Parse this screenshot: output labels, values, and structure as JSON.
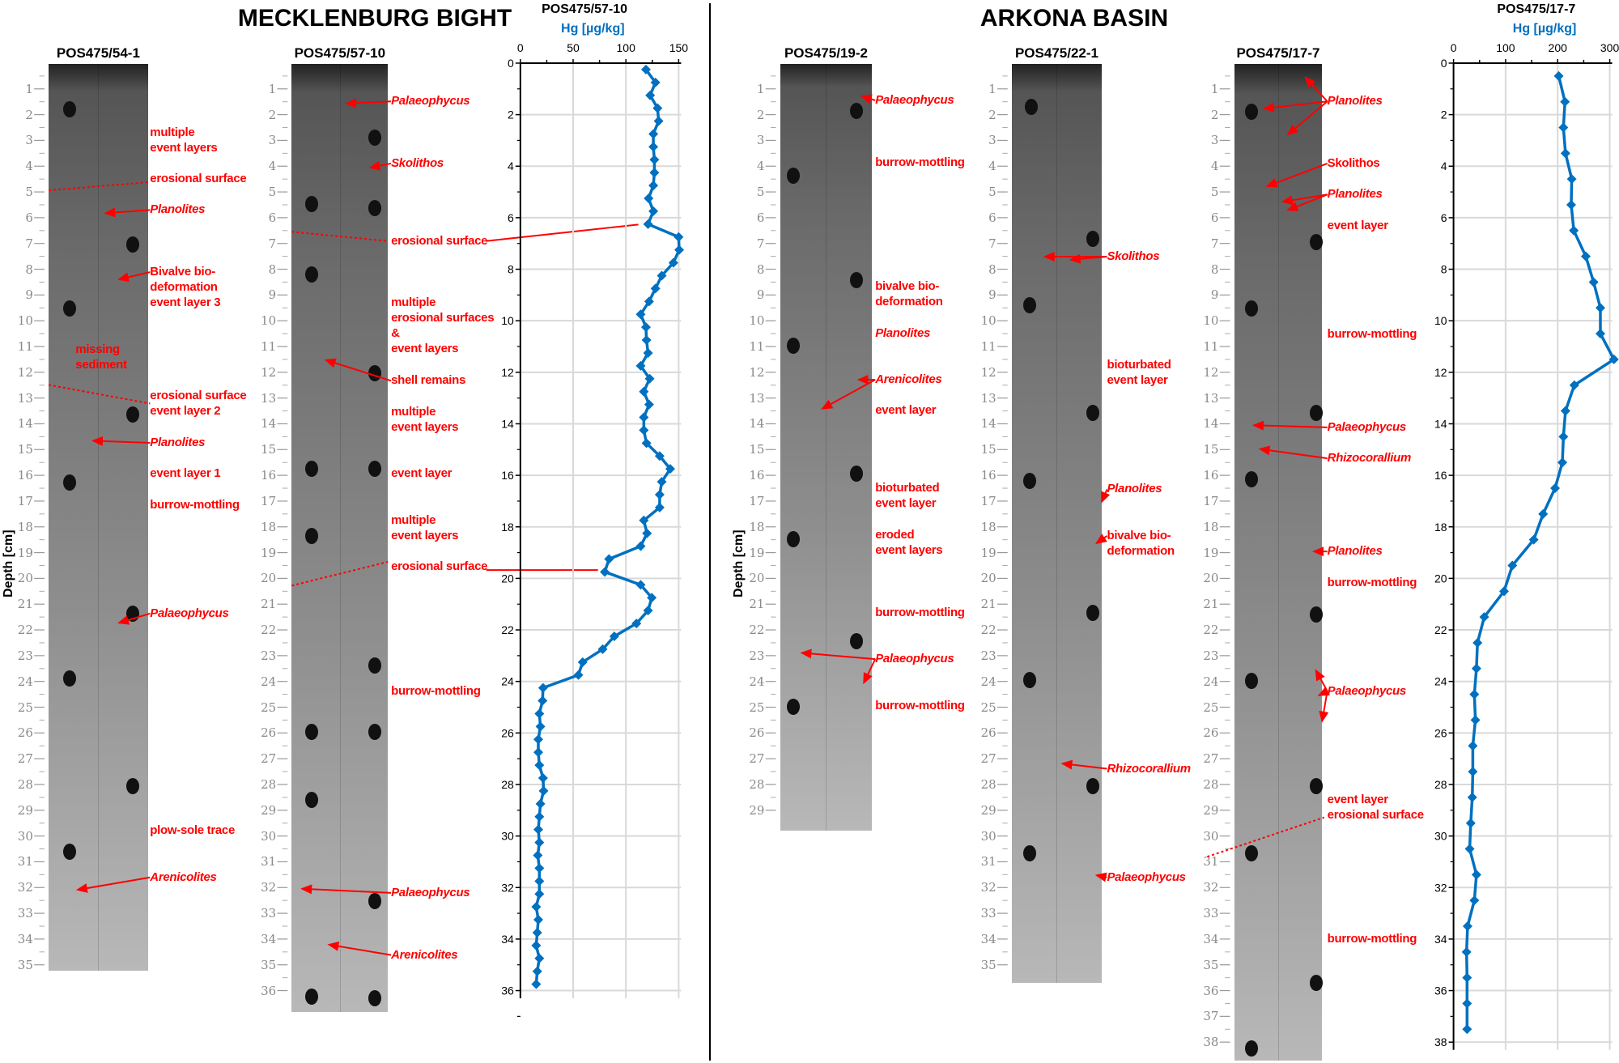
{
  "titles": {
    "left": "MECKLENBURG BIGHT",
    "right": "ARKONA BASIN"
  },
  "depth_axis_label": "Depth [cm]",
  "cores": [
    {
      "id": "POS475/54-1",
      "ruler_max": 35,
      "annotations": [
        {
          "text": "multiple\nevent layers",
          "italic": false
        },
        {
          "text": "erosional surface",
          "italic": false
        },
        {
          "text": "Planolites",
          "italic": true
        },
        {
          "text": "Bivalve bio-\ndeformation\nevent layer 3",
          "italic": false
        },
        {
          "text": "missing\nsediment",
          "italic": false
        },
        {
          "text": "erosional surface\nevent layer 2",
          "italic": false
        },
        {
          "text": "Planolites",
          "italic": true
        },
        {
          "text": "event layer 1",
          "italic": false
        },
        {
          "text": "burrow-mottling",
          "italic": false
        },
        {
          "text": "Palaeophycus",
          "italic": true
        },
        {
          "text": "plow-sole trace",
          "italic": false
        },
        {
          "text": "Arenicolites",
          "italic": true
        }
      ]
    },
    {
      "id": "POS475/57-10",
      "ruler_max": 36,
      "annotations": [
        {
          "text": "Palaeophycus",
          "italic": true
        },
        {
          "text": "Skolithos",
          "italic": true
        },
        {
          "text": "erosional surface",
          "italic": false
        },
        {
          "text": "multiple\nerosional surfaces\n&\nevent layers",
          "italic": false
        },
        {
          "text": "shell remains",
          "italic": false
        },
        {
          "text": "multiple\nevent layers",
          "italic": false
        },
        {
          "text": "event layer",
          "italic": false
        },
        {
          "text": "multiple\nevent layers",
          "italic": false
        },
        {
          "text": "erosional surface",
          "italic": false
        },
        {
          "text": "burrow-mottling",
          "italic": false
        },
        {
          "text": "Palaeophycus",
          "italic": true
        },
        {
          "text": "Arenicolites",
          "italic": true
        }
      ]
    },
    {
      "id": "POS475/19-2",
      "ruler_max": 29,
      "annotations": [
        {
          "text": "Palaeophycus",
          "italic": true
        },
        {
          "text": "burrow-mottling",
          "italic": false
        },
        {
          "text": "bivalve bio-\ndeformation",
          "italic": false
        },
        {
          "text": "Planolites",
          "italic": true
        },
        {
          "text": "Arenicolites",
          "italic": true
        },
        {
          "text": "event layer",
          "italic": false
        },
        {
          "text": "bioturbated\nevent layer",
          "italic": false
        },
        {
          "text": "eroded\nevent layers",
          "italic": false
        },
        {
          "text": "burrow-mottling",
          "italic": false
        },
        {
          "text": "Palaeophycus",
          "italic": true
        },
        {
          "text": "burrow-mottling",
          "italic": false
        }
      ]
    },
    {
      "id": "POS475/22-1",
      "ruler_max": 35,
      "annotations": [
        {
          "text": "Skolithos",
          "italic": true
        },
        {
          "text": "bioturbated\nevent layer",
          "italic": false
        },
        {
          "text": "Planolites",
          "italic": true
        },
        {
          "text": "bivalve bio-\ndeformation",
          "italic": false
        },
        {
          "text": "Rhizocorallium",
          "italic": true
        },
        {
          "text": "Palaeophycus",
          "italic": true
        }
      ]
    },
    {
      "id": "POS475/17-7",
      "ruler_max": 38,
      "annotations": [
        {
          "text": "Planolites",
          "italic": true
        },
        {
          "text": "Skolithos",
          "italic": false
        },
        {
          "text": "Planolites",
          "italic": true
        },
        {
          "text": "event layer",
          "italic": false
        },
        {
          "text": "burrow-mottling",
          "italic": false
        },
        {
          "text": "Palaeophycus",
          "italic": true
        },
        {
          "text": "Rhizocorallium",
          "italic": true
        },
        {
          "text": "Planolites",
          "italic": true
        },
        {
          "text": "burrow-mottling",
          "italic": false
        },
        {
          "text": "Palaeophycus",
          "italic": true
        },
        {
          "text": "event layer\nerosional surface",
          "italic": false
        },
        {
          "text": "burrow-mottling",
          "italic": false
        }
      ]
    }
  ],
  "chart_data": [
    {
      "type": "line",
      "title": "POS475/57-10",
      "xlabel": "Hg [µg/kg]",
      "ylabel": "",
      "xlim": [
        0,
        150
      ],
      "xticks": [
        0,
        50,
        100,
        150
      ],
      "ylim": [
        0,
        36
      ],
      "yticks": [
        0,
        2,
        4,
        6,
        8,
        10,
        12,
        14,
        16,
        18,
        20,
        22,
        24,
        26,
        28,
        30,
        32,
        34,
        36
      ],
      "y_inverted": true,
      "x_axis_position": "top",
      "grid": true,
      "marker": "diamond",
      "color": "#0070C0",
      "series": [
        {
          "x": [
            119,
            128,
            123,
            130,
            131,
            126,
            126,
            127,
            127,
            126,
            121.5,
            126,
            121,
            150,
            150.5,
            145,
            134,
            128,
            122,
            114,
            119,
            119.5,
            121,
            114,
            122.5,
            117,
            122,
            117,
            117,
            119.5,
            132,
            142,
            134,
            132,
            132,
            117,
            120,
            114,
            84,
            80,
            114,
            124.5,
            121,
            110,
            89,
            78,
            59,
            55,
            21.5,
            21,
            18,
            19,
            17,
            17,
            18,
            21.5,
            22,
            19,
            18,
            17,
            18,
            16.5,
            18,
            18,
            18,
            15,
            17,
            16,
            15,
            18,
            16,
            15
          ],
          "y": [
            0.25,
            0.75,
            1.25,
            1.75,
            2.25,
            2.75,
            3.25,
            3.75,
            4.25,
            4.75,
            5.25,
            5.75,
            6.25,
            6.75,
            7.25,
            7.75,
            8.25,
            8.75,
            9.25,
            9.75,
            10.25,
            10.75,
            11.25,
            11.75,
            12.25,
            12.75,
            13.25,
            13.75,
            14.25,
            14.75,
            15.25,
            15.75,
            16.25,
            16.75,
            17.25,
            17.75,
            18.25,
            18.75,
            19.25,
            19.75,
            20.25,
            20.75,
            21.25,
            21.75,
            22.25,
            22.75,
            23.25,
            23.75,
            24.25,
            24.75,
            25.25,
            25.75,
            26.25,
            26.75,
            27.25,
            27.75,
            28.25,
            28.75,
            29.25,
            29.75,
            30.25,
            30.75,
            31.25,
            31.75,
            32.25,
            32.75,
            33.25,
            33.75,
            34.25,
            34.75,
            35.25,
            35.75
          ]
        }
      ]
    },
    {
      "type": "line",
      "title": "POS475/17-7",
      "xlabel": "Hg [µg/kg]",
      "ylabel": "",
      "xlim": [
        0,
        300
      ],
      "xticks": [
        0,
        100,
        200,
        300
      ],
      "ylim": [
        0,
        38
      ],
      "yticks": [
        0,
        2,
        4,
        6,
        8,
        10,
        12,
        14,
        16,
        18,
        20,
        22,
        24,
        26,
        28,
        30,
        32,
        34,
        36,
        38
      ],
      "y_inverted": true,
      "x_axis_position": "top",
      "grid": true,
      "marker": "diamond",
      "color": "#0070C0",
      "series": [
        {
          "x": [
            202,
            214,
            211,
            215,
            227,
            226,
            231,
            254,
            269,
            282,
            282,
            308,
            232,
            215,
            211,
            209,
            195,
            172,
            154,
            113,
            97,
            59,
            46,
            44,
            40,
            42,
            37,
            37,
            36,
            33,
            31,
            44,
            40,
            27,
            25,
            26,
            26,
            26
          ],
          "y": [
            0.5,
            1.5,
            2.5,
            3.5,
            4.5,
            5.5,
            6.5,
            7.5,
            8.5,
            9.5,
            10.5,
            11.5,
            12.5,
            13.5,
            14.5,
            15.5,
            16.5,
            17.5,
            18.5,
            19.5,
            20.5,
            21.5,
            22.5,
            23.5,
            24.5,
            25.5,
            26.5,
            27.5,
            28.5,
            29.5,
            30.5,
            31.5,
            32.5,
            33.5,
            34.5,
            35.5,
            36.5,
            37.5
          ]
        }
      ]
    }
  ]
}
